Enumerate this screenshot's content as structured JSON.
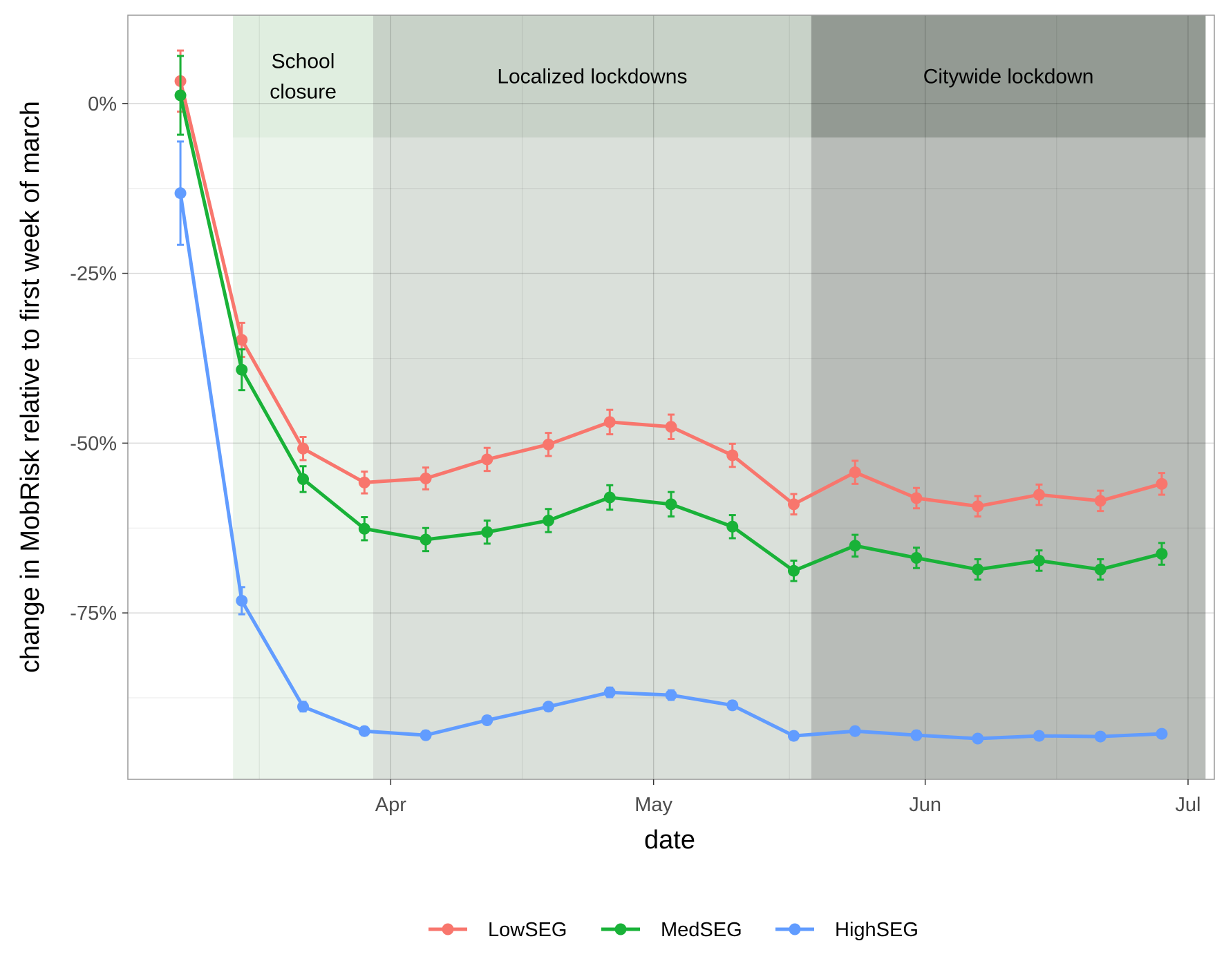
{
  "chart_data": {
    "type": "line",
    "title": "",
    "xlabel": "date",
    "ylabel": "change in MobRisk relative to first week of march",
    "x_ticks": [
      {
        "date": "2020-04-01",
        "label": "Apr"
      },
      {
        "date": "2020-05-01",
        "label": "May"
      },
      {
        "date": "2020-06-01",
        "label": "Jun"
      },
      {
        "date": "2020-07-01",
        "label": "Jul"
      }
    ],
    "y_ticks": [
      {
        "value": 0,
        "label": "0%"
      },
      {
        "value": -25,
        "label": "-25%"
      },
      {
        "value": -50,
        "label": "-50%"
      },
      {
        "value": -75,
        "label": "-75%"
      }
    ],
    "xlim": [
      "2020-03-02",
      "2020-07-04"
    ],
    "ylim": [
      -99.5,
      13
    ],
    "grid": true,
    "legend_position": "bottom",
    "phases": [
      {
        "name": "school_closure",
        "label_lines": [
          "School",
          "closure"
        ],
        "start": "2020-03-14",
        "end": "2020-03-30",
        "color": "#e3efe3",
        "header_color": "#e0eee0",
        "body_color": "#ebf4eb"
      },
      {
        "name": "localized_lockdowns",
        "label_lines": [
          "Localized lockdowns"
        ],
        "start": "2020-03-30",
        "end": "2020-05-19",
        "color": "#d5ddd5",
        "header_color": "#c8d2c8",
        "body_color": "#dae0da"
      },
      {
        "name": "citywide_lockdown",
        "label_lines": [
          "Citywide lockdown"
        ],
        "start": "2020-05-19",
        "end": "2020-07-03",
        "color": "#9aa09a",
        "header_color": "#939a93",
        "body_color": "#b8bcb8"
      }
    ],
    "dates": [
      "2020-03-08",
      "2020-03-15",
      "2020-03-22",
      "2020-03-29",
      "2020-04-05",
      "2020-04-12",
      "2020-04-19",
      "2020-04-26",
      "2020-05-03",
      "2020-05-10",
      "2020-05-17",
      "2020-05-24",
      "2020-05-31",
      "2020-06-07",
      "2020-06-14",
      "2020-06-21",
      "2020-06-28"
    ],
    "series": [
      {
        "name": "LowSEG",
        "color": "#f8766d",
        "values": [
          3.3,
          -34.8,
          -50.8,
          -55.8,
          -55.2,
          -52.4,
          -50.2,
          -46.9,
          -47.6,
          -51.8,
          -59.0,
          -54.3,
          -58.1,
          -59.3,
          -57.6,
          -58.5,
          -56.0
        ],
        "errors": [
          4.5,
          2.5,
          1.7,
          1.6,
          1.6,
          1.7,
          1.7,
          1.8,
          1.8,
          1.7,
          1.5,
          1.7,
          1.5,
          1.5,
          1.5,
          1.5,
          1.6
        ]
      },
      {
        "name": "MedSEG",
        "color": "#19b238",
        "values": [
          1.2,
          -39.2,
          -55.3,
          -62.6,
          -64.2,
          -63.1,
          -61.4,
          -58.0,
          -59.0,
          -62.3,
          -68.8,
          -65.1,
          -66.9,
          -68.6,
          -67.3,
          -68.6,
          -66.3
        ],
        "errors": [
          5.8,
          3.0,
          1.9,
          1.7,
          1.7,
          1.7,
          1.7,
          1.8,
          1.8,
          1.7,
          1.5,
          1.6,
          1.5,
          1.5,
          1.5,
          1.5,
          1.6
        ]
      },
      {
        "name": "HighSEG",
        "color": "#619cff",
        "values": [
          -13.2,
          -73.2,
          -88.8,
          -92.4,
          -93.0,
          -90.8,
          -88.8,
          -86.7,
          -87.1,
          -88.6,
          -93.1,
          -92.4,
          -93.0,
          -93.5,
          -93.1,
          -93.2,
          -92.8
        ],
        "errors": [
          7.6,
          2.0,
          0.7,
          0.6,
          0.6,
          0.6,
          0.6,
          0.7,
          0.7,
          0.6,
          0.6,
          0.6,
          0.6,
          0.5,
          0.5,
          0.5,
          0.5
        ]
      }
    ]
  }
}
